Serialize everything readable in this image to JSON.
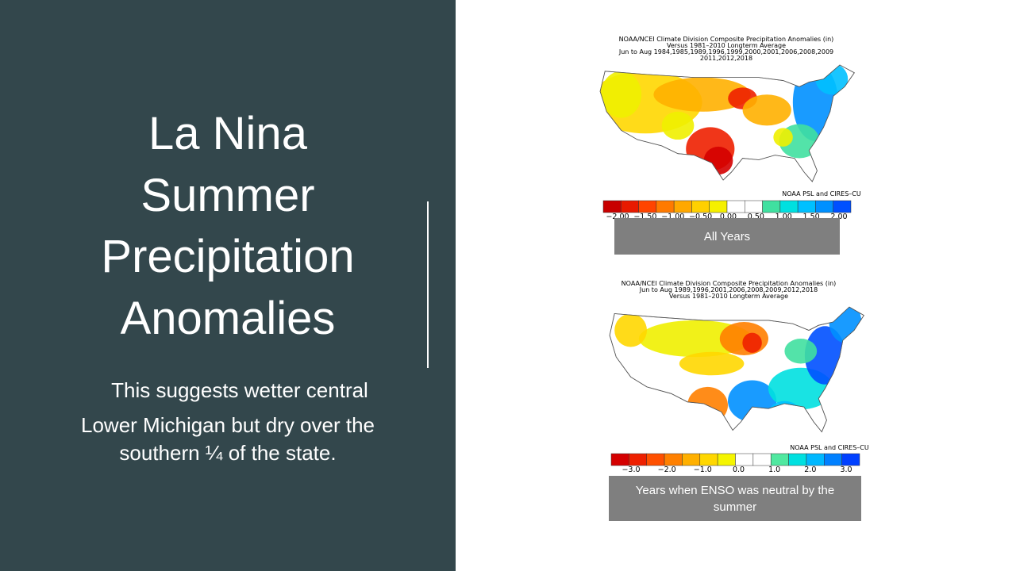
{
  "title_lines": [
    "La Nina",
    "Summer",
    "Precipitation",
    "Anomalies"
  ],
  "body_lines": [
    "This suggests wetter central",
    "Lower Michigan but dry over the",
    "southern ¼ of the state."
  ],
  "maps": [
    {
      "title_lines": [
        "NOAA/NCEI Climate Division Composite Precipitation Anomalies (in)",
        "Versus 1981–2010 Longterm Average",
        "Jun to Aug  1984,1985,1989,1996,1999,2000,2001,2006,2008,2009",
        "2011,2012,2018"
      ],
      "credit": "NOAA PSL and CIRES–CU",
      "colorbar_labels": [
        "−2.00",
        "−1.50",
        "−1.00",
        "−0.50",
        "0.00",
        "0.50",
        "1.00",
        "1.50",
        "2.00"
      ],
      "caption": "All   Years"
    },
    {
      "title_lines": [
        "NOAA/NCEI Climate Division Composite Precipitation Anomalies (in)",
        "Jun to Aug  1989,1996,2001,2006,2008,2009,2012,2018",
        "Versus 1981–2010 Longterm Average"
      ],
      "credit": "NOAA PSL and CIRES–CU",
      "colorbar_labels": [
        "−3.0",
        "−2.0",
        "−1.0",
        "0.0",
        "1.0",
        "2.0",
        "3.0"
      ],
      "caption": "Years when ENSO was neutral by the summer"
    }
  ]
}
